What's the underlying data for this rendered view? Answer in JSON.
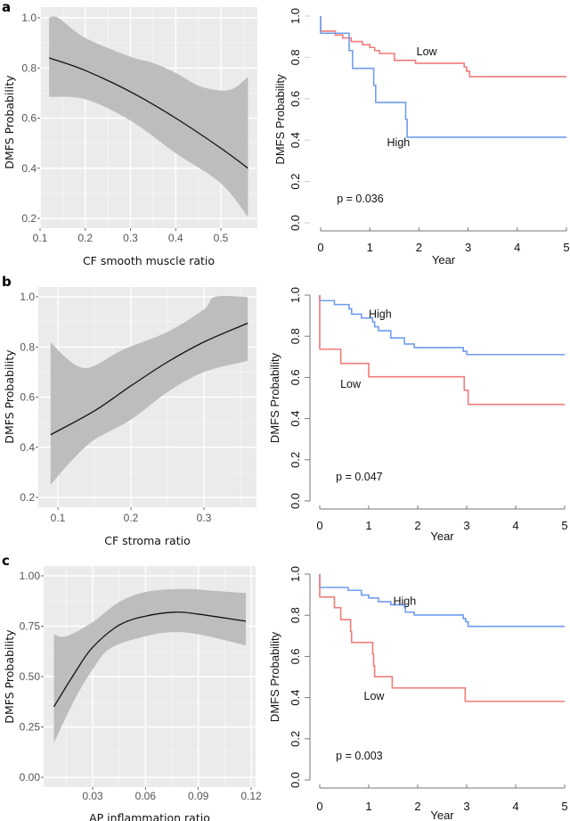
{
  "figure": {
    "panel_letters": [
      "a",
      "b",
      "c"
    ]
  },
  "chart_data": [
    {
      "id": "a-left",
      "panel": "a",
      "type": "line",
      "subtype": "smooth-fit-with-confidence-band",
      "title": "",
      "xlabel": "CF smooth muscle ratio",
      "ylabel": "DMFS Probability",
      "xlim": [
        0.1,
        0.58
      ],
      "ylim": [
        0.17,
        1.04
      ],
      "xticks": [
        0.1,
        0.2,
        0.3,
        0.4,
        0.5
      ],
      "xtick_labels": [
        "0.1",
        "0.2",
        "0.3",
        "0.4",
        "0.5"
      ],
      "yticks": [
        0.2,
        0.4,
        0.6,
        0.8,
        1.0
      ],
      "ytick_labels": [
        "0.2",
        "0.4",
        "0.6",
        "0.8",
        "1.0"
      ],
      "grid": true,
      "colors": {
        "background": "#ebebeb",
        "band": "#bdbdbd",
        "line": "#111111",
        "grid": "#ffffff"
      },
      "fit": {
        "x": [
          0.12,
          0.2,
          0.3,
          0.4,
          0.5,
          0.56
        ],
        "y": [
          0.84,
          0.79,
          0.705,
          0.6,
          0.48,
          0.4
        ]
      },
      "upper": {
        "x": [
          0.12,
          0.14,
          0.2,
          0.3,
          0.35,
          0.4,
          0.45,
          0.5,
          0.53,
          0.56
        ],
        "y": [
          1.0,
          1.0,
          0.92,
          0.845,
          0.82,
          0.78,
          0.73,
          0.71,
          0.72,
          0.765
        ]
      },
      "lower": {
        "x": [
          0.12,
          0.2,
          0.3,
          0.4,
          0.5,
          0.56
        ],
        "y": [
          0.685,
          0.675,
          0.59,
          0.46,
          0.34,
          0.205
        ]
      }
    },
    {
      "id": "a-right",
      "panel": "a",
      "type": "line",
      "subtype": "kaplan-meier",
      "title": "",
      "xlabel": "Year",
      "ylabel": "DMFS Probability",
      "xlim": [
        0,
        5
      ],
      "ylim": [
        0,
        1
      ],
      "xticks": [
        0,
        1,
        2,
        3,
        4,
        5
      ],
      "xtick_labels": [
        "0",
        "1",
        "2",
        "3",
        "4",
        "5"
      ],
      "yticks": [
        0,
        0.2,
        0.4,
        0.6,
        0.8,
        1.0
      ],
      "ytick_labels": [
        "0.0",
        "0.2",
        "0.4",
        "0.6",
        "0.8",
        "1.0"
      ],
      "grid": false,
      "show_y_axis_line": false,
      "annotation": "p = 0.036",
      "series": [
        {
          "name": "Low",
          "color": "#f07b7b",
          "t": [
            0,
            0,
            0.3,
            0.45,
            0.62,
            0.85,
            1.0,
            1.1,
            1.2,
            1.5,
            1.93,
            2.92,
            2.97,
            3.03,
            5
          ],
          "s": [
            1.0,
            0.927,
            0.908,
            0.894,
            0.877,
            0.862,
            0.848,
            0.833,
            0.819,
            0.786,
            0.772,
            0.754,
            0.733,
            0.707,
            0.707
          ],
          "label_pos": [
            1.95,
            0.81
          ]
        },
        {
          "name": "High",
          "color": "#6f9cf0",
          "t": [
            0,
            0,
            0.58,
            0.65,
            1.08,
            1.12,
            1.73,
            1.76,
            5
          ],
          "s": [
            1.0,
            0.917,
            0.833,
            0.747,
            0.665,
            0.582,
            0.5,
            0.414,
            0.414
          ],
          "label_pos": [
            1.35,
            0.37
          ]
        }
      ]
    },
    {
      "id": "b-left",
      "panel": "b",
      "type": "line",
      "subtype": "smooth-fit-with-confidence-band",
      "title": "",
      "xlabel": "CF stroma ratio",
      "ylabel": "DMFS Probability",
      "xlim": [
        0.073,
        0.373
      ],
      "ylim": [
        0.175,
        1.04
      ],
      "xticks": [
        0.1,
        0.2,
        0.3
      ],
      "xtick_labels": [
        "0.1",
        "0.2",
        "0.3"
      ],
      "yticks": [
        0.2,
        0.4,
        0.6,
        0.8,
        1.0
      ],
      "ytick_labels": [
        "0.2",
        "0.4",
        "0.6",
        "0.8",
        "1.0"
      ],
      "grid": true,
      "colors": {
        "background": "#ebebeb",
        "band": "#bdbdbd",
        "line": "#111111",
        "grid": "#ffffff"
      },
      "fit": {
        "x": [
          0.09,
          0.15,
          0.2,
          0.25,
          0.3,
          0.36
        ],
        "y": [
          0.45,
          0.545,
          0.645,
          0.74,
          0.82,
          0.895
        ]
      },
      "upper": {
        "x": [
          0.09,
          0.11,
          0.13,
          0.15,
          0.19,
          0.25,
          0.3,
          0.315,
          0.36
        ],
        "y": [
          0.82,
          0.76,
          0.72,
          0.725,
          0.79,
          0.86,
          0.95,
          1.0,
          1.0
        ]
      },
      "lower": {
        "x": [
          0.09,
          0.12,
          0.15,
          0.2,
          0.25,
          0.3,
          0.36
        ],
        "y": [
          0.25,
          0.35,
          0.43,
          0.51,
          0.62,
          0.7,
          0.745
        ]
      }
    },
    {
      "id": "b-right",
      "panel": "b",
      "type": "line",
      "subtype": "kaplan-meier",
      "title": "",
      "xlabel": "Year",
      "ylabel": "DMFS Probability",
      "xlim": [
        0,
        5
      ],
      "ylim": [
        0,
        1
      ],
      "xticks": [
        0,
        1,
        2,
        3,
        4,
        5
      ],
      "xtick_labels": [
        "0",
        "1",
        "2",
        "3",
        "4",
        "5"
      ],
      "yticks": [
        0,
        0.2,
        0.4,
        0.6,
        0.8,
        1.0
      ],
      "ytick_labels": [
        "0.0",
        "0.2",
        "0.4",
        "0.6",
        "0.8",
        "1.0"
      ],
      "grid": false,
      "show_y_axis_line": true,
      "annotation": "p = 0.047",
      "series": [
        {
          "name": "High",
          "color": "#6f9cf0",
          "t": [
            0,
            0,
            0.3,
            0.6,
            0.65,
            0.85,
            1.08,
            1.12,
            1.2,
            1.45,
            1.73,
            1.93,
            2.93,
            3.0,
            5
          ],
          "s": [
            1.0,
            0.973,
            0.954,
            0.933,
            0.907,
            0.889,
            0.87,
            0.846,
            0.827,
            0.792,
            0.762,
            0.745,
            0.727,
            0.711,
            0.711
          ],
          "label_pos": [
            1.0,
            0.89
          ]
        },
        {
          "name": "Low",
          "color": "#f07b7b",
          "t": [
            0,
            0,
            0.43,
            1.0,
            2.95,
            3.03,
            5
          ],
          "s": [
            1.0,
            0.737,
            0.668,
            0.603,
            0.538,
            0.469,
            0.469
          ],
          "label_pos": [
            0.42,
            0.55
          ]
        }
      ]
    },
    {
      "id": "c-left",
      "panel": "c",
      "type": "line",
      "subtype": "smooth-fit-with-confidence-band",
      "title": "",
      "xlabel": "AP inflammation ratio",
      "ylabel": "DMFS Probability",
      "xlim": [
        0.0055,
        0.1215
      ],
      "ylim": [
        -0.05,
        1.05
      ],
      "xticks": [
        0.03,
        0.06,
        0.09,
        0.12
      ],
      "xtick_labels": [
        "0.03",
        "0.06",
        "0.09",
        "0.12"
      ],
      "yticks": [
        0.0,
        0.25,
        0.5,
        0.75,
        1.0
      ],
      "ytick_labels": [
        "0.00",
        "0.25",
        "0.50",
        "0.75",
        "1.00"
      ],
      "grid": true,
      "colors": {
        "background": "#ebebeb",
        "band": "#bdbdbd",
        "line": "#111111",
        "grid": "#ffffff"
      },
      "fit": {
        "x": [
          0.008,
          0.02,
          0.03,
          0.045,
          0.06,
          0.077,
          0.09,
          0.117
        ],
        "y": [
          0.35,
          0.52,
          0.645,
          0.755,
          0.8,
          0.82,
          0.81,
          0.775
        ]
      },
      "upper": {
        "x": [
          0.008,
          0.015,
          0.03,
          0.045,
          0.06,
          0.08,
          0.1,
          0.117
        ],
        "y": [
          0.71,
          0.7,
          0.77,
          0.87,
          0.92,
          0.935,
          0.925,
          0.915
        ]
      },
      "lower": {
        "x": [
          0.008,
          0.02,
          0.03,
          0.04,
          0.06,
          0.075,
          0.09,
          0.117
        ],
        "y": [
          0.17,
          0.39,
          0.535,
          0.64,
          0.7,
          0.72,
          0.71,
          0.655
        ]
      }
    },
    {
      "id": "c-right",
      "panel": "c",
      "type": "line",
      "subtype": "kaplan-meier",
      "title": "",
      "xlabel": "Year",
      "ylabel": "DMFS Probability",
      "xlim": [
        0,
        5
      ],
      "ylim": [
        0,
        1
      ],
      "xticks": [
        0,
        1,
        2,
        3,
        4,
        5
      ],
      "xtick_labels": [
        "0",
        "1",
        "2",
        "3",
        "4",
        "5"
      ],
      "yticks": [
        0,
        0.2,
        0.4,
        0.6,
        0.8,
        1.0
      ],
      "ytick_labels": [
        "0.0",
        "0.2",
        "0.4",
        "0.6",
        "0.8",
        "1.0"
      ],
      "grid": false,
      "show_y_axis_line": true,
      "annotation": "p = 0.003",
      "series": [
        {
          "name": "High",
          "color": "#6f9cf0",
          "t": [
            0,
            0,
            0.58,
            0.85,
            1.0,
            1.2,
            1.45,
            1.73,
            1.75,
            1.93,
            2.93,
            2.98,
            3.03,
            5
          ],
          "s": [
            1.0,
            0.935,
            0.921,
            0.898,
            0.884,
            0.866,
            0.851,
            0.837,
            0.815,
            0.801,
            0.784,
            0.768,
            0.746,
            0.746
          ],
          "label_pos": [
            1.5,
            0.85
          ]
        },
        {
          "name": "Low",
          "color": "#f07b7b",
          "t": [
            0,
            0,
            0.3,
            0.43,
            0.63,
            0.65,
            1.08,
            1.1,
            1.12,
            1.48,
            2.97,
            5
          ],
          "s": [
            1.0,
            0.889,
            0.837,
            0.779,
            0.721,
            0.668,
            0.613,
            0.555,
            0.502,
            0.447,
            0.382,
            0.382
          ],
          "label_pos": [
            0.9,
            0.39
          ]
        }
      ]
    }
  ]
}
